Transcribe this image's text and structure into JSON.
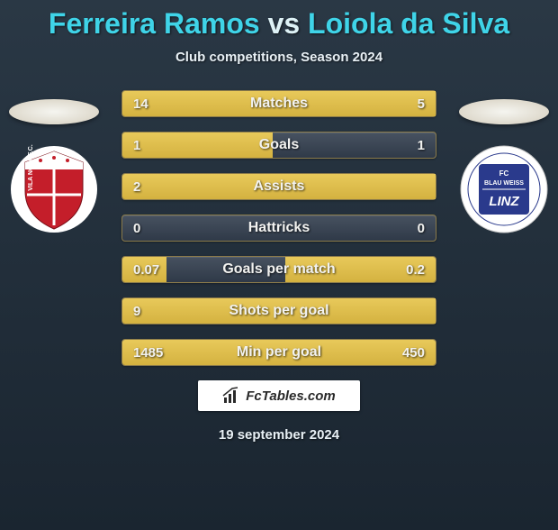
{
  "title": {
    "player1": "Ferreira Ramos",
    "vs": "vs",
    "player2": "Loiola da Silva",
    "color_player": "#3fd4e8",
    "color_vs": "#def2f6",
    "fontsize": 32
  },
  "subtitle": "Club competitions, Season 2024",
  "badges": {
    "left_crest": {
      "type": "shield",
      "primary": "#c41e2a",
      "secondary": "#ffffff",
      "text": "VILA NOVA F.C."
    },
    "right_crest": {
      "type": "circle",
      "primary": "#2a3a8c",
      "secondary": "#ffffff",
      "text": "FC BLAU WEISS LINZ"
    },
    "oval_bg": "#f0ead6"
  },
  "stats": {
    "rows": [
      {
        "label": "Matches",
        "left": "14",
        "right": "5",
        "fill_left_pct": 100,
        "fill_right_pct": 0
      },
      {
        "label": "Goals",
        "left": "1",
        "right": "1",
        "fill_left_pct": 48,
        "fill_right_pct": 0
      },
      {
        "label": "Assists",
        "left": "2",
        "right": "",
        "fill_left_pct": 100,
        "fill_right_pct": 0
      },
      {
        "label": "Hattricks",
        "left": "0",
        "right": "0",
        "fill_left_pct": 0,
        "fill_right_pct": 0
      },
      {
        "label": "Goals per match",
        "left": "0.07",
        "right": "0.2",
        "fill_left_pct": 14,
        "fill_right_pct": 48
      },
      {
        "label": "Shots per goal",
        "left": "9",
        "right": "",
        "fill_left_pct": 100,
        "fill_right_pct": 0
      },
      {
        "label": "Min per goal",
        "left": "1485",
        "right": "450",
        "fill_left_pct": 78,
        "fill_right_pct": 22
      }
    ],
    "bar_fill_color": "#e0c14e",
    "bar_border_color": "#8a7a4a",
    "bar_bg_color": "#4a5868",
    "text_color": "#f2f2f0",
    "label_fontsize": 16,
    "value_fontsize": 15
  },
  "brand": {
    "text": "FcTables.com",
    "bg": "#ffffff",
    "text_color": "#2a2a2a"
  },
  "date": "19 september 2024",
  "background": {
    "top": "#2a3845",
    "bottom": "#1a2530"
  }
}
